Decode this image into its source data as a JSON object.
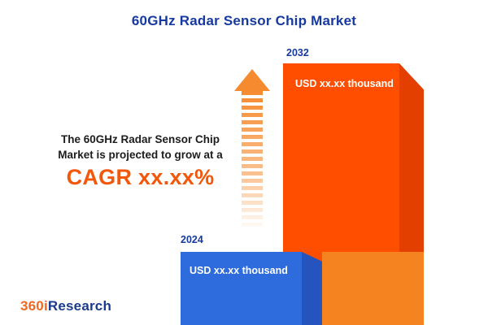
{
  "title": "60GHz Radar Sensor Chip Market",
  "description": {
    "line1": "The 60GHz Radar Sensor Chip",
    "line2": "Market is projected to grow at a",
    "cagr_text": "CAGR xx.xx%"
  },
  "chart_data": {
    "type": "bar",
    "title": "60GHz Radar Sensor Chip Market",
    "categories": [
      "2024",
      "2032"
    ],
    "series": [
      {
        "name": "Market size (USD thousand)",
        "values": [
          "xx.xx",
          "xx.xx"
        ]
      }
    ],
    "value_labels": [
      "USD xx.xx thousand",
      "USD xx.xx thousand"
    ],
    "annotations": [
      "The 60GHz Radar Sensor Chip Market is projected to grow at a CAGR xx.xx%"
    ],
    "bar_colors": [
      "#2E6BDC",
      "#FF4E00"
    ],
    "legend": "none",
    "axes": "none (pictorial 3D bar infographic, numeric values masked as xx.xx)"
  },
  "bars": [
    {
      "year": "2024",
      "value_label": "USD xx.xx thousand"
    },
    {
      "year": "2032",
      "value_label": "USD xx.xx thousand"
    }
  ],
  "logo": {
    "prefix": "360i",
    "suffix": "Research"
  },
  "colors": {
    "navy": "#1639A0",
    "accent_orange": "#F2570A",
    "bar_blue_front": "#2E6BDC",
    "bar_blue_side": "#2554BE",
    "bar_orange_front": "#FF4E00",
    "bar_orange_side": "#E23F00",
    "bar_orange_lower": "#F5831F",
    "arrow_orange": "#F68A2E",
    "logo_orange": "#F26822",
    "logo_navy": "#1B3C8C"
  }
}
